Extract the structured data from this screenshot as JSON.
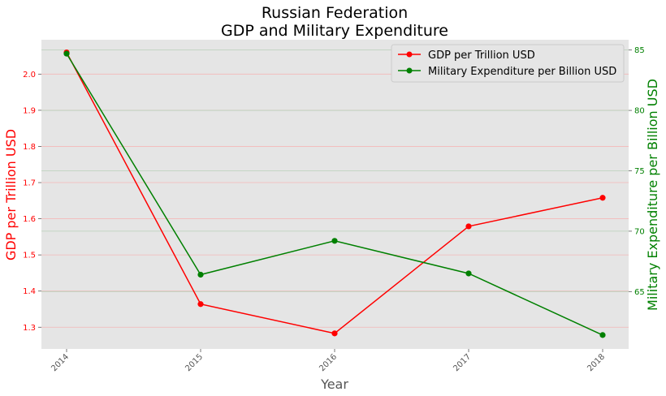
{
  "chart_data": {
    "type": "line",
    "title": "Russian Federation\nGDP and Military Expenditure",
    "xlabel": "Year",
    "categories": [
      "2014",
      "2015",
      "2016",
      "2017",
      "2018"
    ],
    "grid": true,
    "legend_position": "top-right",
    "series": [
      {
        "name": "GDP per Trillion USD",
        "axis": "left",
        "color": "#ff0000",
        "values": [
          2.06,
          1.364,
          1.283,
          1.579,
          1.658
        ]
      },
      {
        "name": "Military Expenditure per Billion USD",
        "axis": "right",
        "color": "#008000",
        "values": [
          84.7,
          66.4,
          69.2,
          66.5,
          61.4
        ]
      }
    ],
    "left_axis": {
      "label": "GDP per Trillion USD",
      "color": "#ff0000",
      "range": [
        1.24,
        2.095
      ],
      "ticks": [
        "1.3",
        "1.4",
        "1.5",
        "1.6",
        "1.7",
        "1.8",
        "1.9",
        "2.0"
      ]
    },
    "right_axis": {
      "label": "Military Expenditure per Billion USD",
      "color": "#008000",
      "range": [
        60.25,
        85.85
      ],
      "ticks": [
        "65",
        "70",
        "75",
        "80",
        "85"
      ]
    }
  }
}
